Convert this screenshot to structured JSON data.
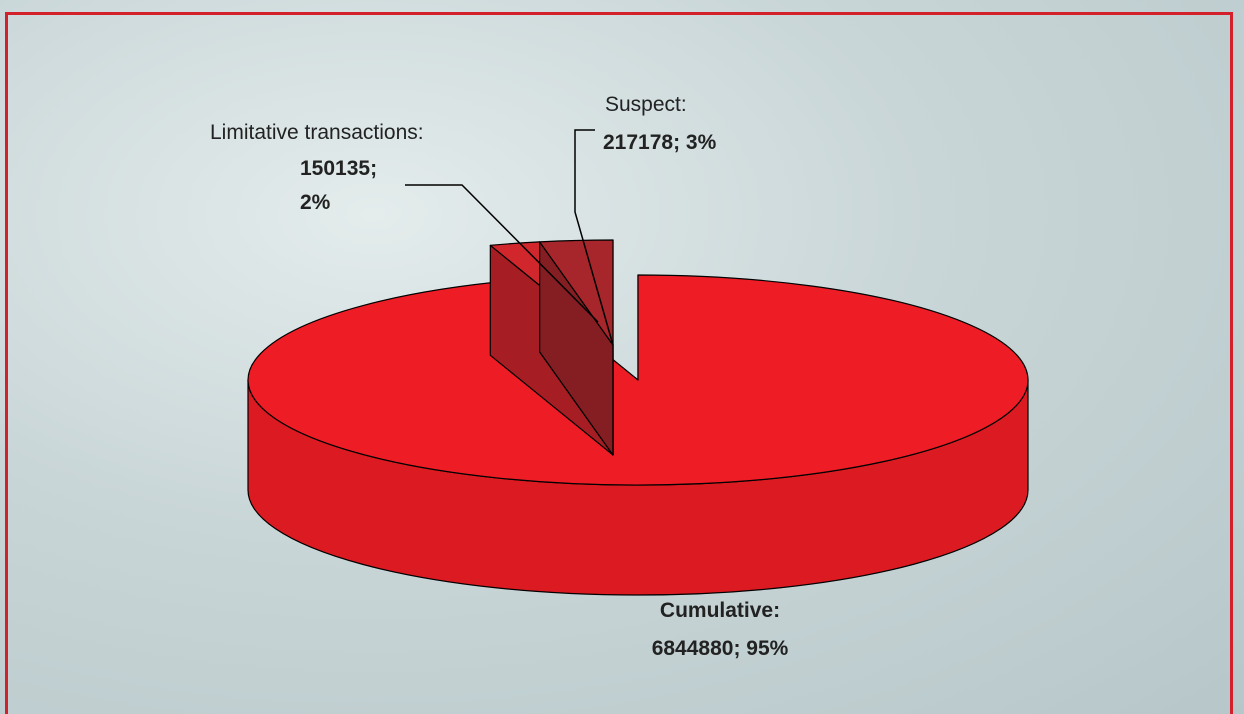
{
  "chart_data": {
    "type": "pie",
    "three_d": true,
    "categories": [
      "Cumulative:",
      "Limitative transactions:",
      "Suspect:"
    ],
    "values": [
      6844880,
      150135,
      217178
    ],
    "value_labels": [
      "6844880; 95%",
      "150135; 2%",
      "217178; 3%"
    ],
    "colors": [
      "#ee1c25",
      "#d0262c",
      "#a6262b"
    ]
  }
}
